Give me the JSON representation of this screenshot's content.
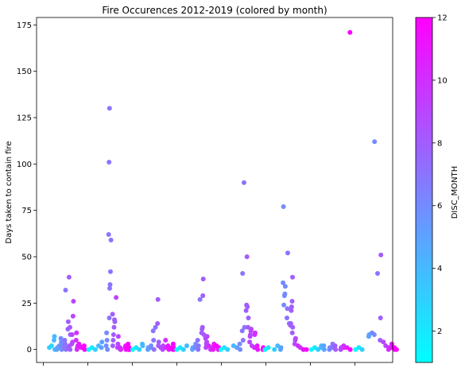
{
  "chart_data": {
    "type": "scatter",
    "title": "Fire Occurences 2012-2019 (colored by month)",
    "ylabel": "Days taken to contain fire",
    "xlabel": "",
    "ylim": [
      -7,
      179
    ],
    "yticks": [
      0,
      25,
      50,
      75,
      100,
      125,
      150,
      175
    ],
    "x_tick_count": 8,
    "grid": false,
    "colorbar": {
      "label": "DISC_MONTH",
      "range": [
        1,
        12
      ],
      "ticks": [
        2,
        4,
        6,
        8,
        10,
        12
      ],
      "colormap": "cool",
      "colors": [
        "#00ffff",
        "#ff00ff"
      ]
    },
    "years": [
      {
        "x_start": 2012.0,
        "values": [
          1,
          2,
          0,
          7,
          5,
          1,
          0,
          2,
          1,
          3,
          0,
          4,
          6,
          2,
          1,
          0,
          32,
          3,
          5,
          1,
          8,
          12,
          2,
          39,
          1,
          15,
          11,
          0,
          26,
          18,
          4,
          8,
          3,
          2,
          1,
          0,
          9,
          5,
          2,
          3,
          1,
          0,
          2,
          1
        ],
        "months": [
          3,
          3,
          4,
          4,
          4,
          5,
          5,
          5,
          6,
          6,
          6,
          6,
          6,
          6,
          7,
          7,
          7,
          7,
          7,
          7,
          8,
          8,
          8,
          8,
          8,
          8,
          8,
          8,
          9,
          9,
          9,
          9,
          9,
          10,
          10,
          10,
          10,
          10,
          11,
          11,
          11,
          12,
          12,
          12
        ]
      },
      {
        "x_start": 2013.0,
        "values": [
          0,
          1,
          0,
          2,
          4,
          1,
          0,
          5,
          9,
          2,
          130,
          101,
          62,
          59,
          42,
          35,
          33,
          17,
          19,
          15,
          16,
          12,
          8,
          5,
          2,
          28,
          7,
          3,
          1,
          0,
          0,
          1,
          0,
          2,
          1,
          0,
          3,
          2,
          1,
          0,
          1,
          0
        ],
        "months": [
          1,
          2,
          3,
          4,
          5,
          5,
          6,
          6,
          6,
          6,
          7,
          7,
          7,
          7,
          7,
          7,
          7,
          7,
          8,
          8,
          8,
          8,
          8,
          8,
          8,
          9,
          9,
          9,
          9,
          10,
          10,
          10,
          11,
          11,
          11,
          12,
          12,
          12,
          12,
          12,
          12,
          12
        ]
      },
      {
        "x_start": 2014.0,
        "values": [
          0,
          1,
          0,
          2,
          3,
          1,
          0,
          2,
          1,
          0,
          5,
          10,
          12,
          4,
          2,
          27,
          14,
          1,
          2,
          0,
          1,
          5,
          0,
          1,
          2,
          0,
          1,
          3,
          0,
          1
        ],
        "months": [
          1,
          2,
          3,
          4,
          4,
          5,
          5,
          6,
          6,
          7,
          7,
          7,
          7,
          8,
          8,
          8,
          8,
          9,
          9,
          9,
          10,
          10,
          11,
          11,
          11,
          12,
          12,
          12,
          12,
          12
        ]
      },
      {
        "x_start": 2015.0,
        "values": [
          0,
          1,
          0,
          2,
          1,
          0,
          3,
          1,
          2,
          0,
          5,
          27,
          38,
          29,
          12,
          11,
          9,
          8,
          7,
          4,
          3,
          1,
          6,
          2,
          1,
          0,
          3,
          1,
          0,
          2,
          1,
          0
        ],
        "months": [
          1,
          2,
          3,
          4,
          5,
          5,
          6,
          6,
          7,
          7,
          7,
          7,
          8,
          8,
          8,
          8,
          8,
          8,
          9,
          9,
          9,
          9,
          9,
          10,
          10,
          10,
          11,
          11,
          11,
          12,
          12,
          12
        ]
      },
      {
        "x_start": 2016.0,
        "values": [
          0,
          1,
          0,
          2,
          1,
          0,
          3,
          5,
          41,
          10,
          12,
          90,
          23,
          50,
          24,
          21,
          17,
          12,
          11,
          10,
          8,
          7,
          4,
          2,
          9,
          8,
          1,
          0,
          2,
          1,
          0
        ],
        "months": [
          1,
          2,
          3,
          4,
          5,
          6,
          6,
          7,
          7,
          7,
          7,
          7,
          8,
          8,
          8,
          8,
          8,
          8,
          9,
          9,
          9,
          9,
          9,
          9,
          10,
          10,
          10,
          11,
          11,
          12,
          12
        ]
      },
      {
        "x_start": 2017.0,
        "values": [
          0,
          1,
          0,
          2,
          1,
          0,
          24,
          77,
          36,
          34,
          30,
          29,
          52,
          22,
          17,
          14,
          39,
          26,
          23,
          21,
          14,
          13,
          12,
          9,
          6,
          5,
          3,
          2,
          1,
          0,
          0,
          0
        ],
        "months": [
          1,
          2,
          3,
          4,
          5,
          5,
          6,
          6,
          6,
          6,
          6,
          6,
          7,
          7,
          7,
          7,
          8,
          8,
          8,
          8,
          8,
          8,
          8,
          8,
          9,
          9,
          9,
          10,
          10,
          11,
          11,
          12
        ]
      },
      {
        "x_start": 2018.0,
        "values": [
          171,
          0,
          1,
          0,
          2,
          1,
          0,
          2,
          1,
          0,
          3,
          1,
          0,
          2,
          1,
          0,
          1,
          2,
          1,
          0
        ],
        "months": [
          12,
          1,
          2,
          3,
          4,
          4,
          5,
          5,
          6,
          6,
          7,
          7,
          8,
          8,
          9,
          9,
          10,
          10,
          11,
          12
        ]
      },
      {
        "x_start": 2019.0,
        "values": [
          112,
          0,
          1,
          0,
          8,
          7,
          9,
          8,
          41,
          51,
          17,
          5,
          4,
          2,
          1,
          0,
          3,
          1,
          0,
          1,
          0
        ],
        "months": [
          6,
          1,
          2,
          3,
          5,
          5,
          6,
          6,
          7,
          8,
          8,
          8,
          9,
          9,
          10,
          10,
          11,
          11,
          12,
          12,
          12
        ]
      }
    ]
  }
}
